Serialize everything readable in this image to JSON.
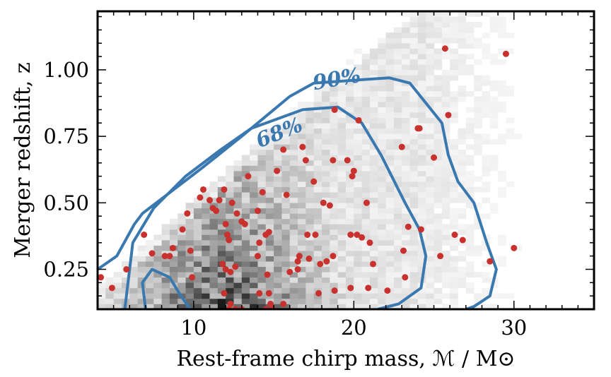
{
  "chart_data": {
    "type": "scatter",
    "title": "",
    "xlabel": "Rest-frame chirp mass, ℳ / M⊙",
    "ylabel": "Merger redshift, z",
    "xlim": [
      4,
      35
    ],
    "ylim": [
      0.1,
      1.22
    ],
    "x_ticks": [
      10,
      20,
      30
    ],
    "x_tick_labels": [
      "10",
      "20",
      "30"
    ],
    "y_ticks": [
      0.25,
      0.5,
      0.75,
      1.0
    ],
    "y_tick_labels": [
      "0.25",
      "0.50",
      "0.75",
      "1.00"
    ],
    "grid": false,
    "background_histogram": {
      "style": "grayscale 2D histogram of simulated mergers",
      "bin_width_mass": 0.5,
      "bin_width_z": 0.02
    },
    "contours": [
      {
        "label": "68%",
        "points": [
          [
            5.7,
            0.1
          ],
          [
            6.2,
            0.35
          ],
          [
            7.5,
            0.48
          ],
          [
            9.5,
            0.6
          ],
          [
            11.7,
            0.7
          ],
          [
            13.6,
            0.78
          ],
          [
            16.8,
            0.85
          ],
          [
            19,
            0.86
          ],
          [
            20.5,
            0.8
          ],
          [
            21.7,
            0.68
          ],
          [
            23.2,
            0.5
          ],
          [
            24.1,
            0.4
          ],
          [
            24.5,
            0.3
          ],
          [
            24.2,
            0.18
          ],
          [
            22.8,
            0.12
          ],
          [
            21.5,
            0.1
          ]
        ],
        "inner_points": [
          [
            7.0,
            0.1
          ],
          [
            6.8,
            0.2
          ],
          [
            7.4,
            0.25
          ],
          [
            8.5,
            0.22
          ],
          [
            9.2,
            0.15
          ],
          [
            9.8,
            0.1
          ]
        ]
      },
      {
        "label": "90%",
        "points": [
          [
            4,
            0.25
          ],
          [
            5.2,
            0.3
          ],
          [
            6.3,
            0.42
          ],
          [
            6.8,
            0.46
          ],
          [
            10.5,
            0.63
          ],
          [
            13.0,
            0.75
          ],
          [
            16.0,
            0.9
          ],
          [
            17.5,
            0.95
          ],
          [
            22.2,
            0.97
          ],
          [
            23.5,
            0.95
          ],
          [
            25.5,
            0.8
          ],
          [
            25.9,
            0.68
          ],
          [
            26.5,
            0.58
          ],
          [
            27.5,
            0.5
          ],
          [
            28.3,
            0.35
          ],
          [
            28.9,
            0.25
          ],
          [
            28.5,
            0.15
          ],
          [
            27.5,
            0.11
          ],
          [
            27.0,
            0.1
          ]
        ],
        "label_positions_data": [
          [
            15.5,
            0.74
          ],
          [
            19.0,
            0.94
          ]
        ]
      }
    ],
    "series": [
      {
        "marker": "circle",
        "color": "#c8312d",
        "points": [
          [
            4.2,
            0.22
          ],
          [
            4.9,
            0.18
          ],
          [
            5.8,
            0.25
          ],
          [
            6.9,
            0.38
          ],
          [
            7.4,
            0.31
          ],
          [
            8.2,
            0.3
          ],
          [
            8.5,
            0.3
          ],
          [
            8.7,
            0.33
          ],
          [
            9.3,
            0.4
          ],
          [
            9.6,
            0.46
          ],
          [
            9.8,
            0.32
          ],
          [
            9.9,
            0.22
          ],
          [
            10.4,
            0.52
          ],
          [
            10.6,
            0.55
          ],
          [
            11.0,
            0.51
          ],
          [
            11.2,
            0.48
          ],
          [
            11.4,
            0.47
          ],
          [
            11.6,
            0.51
          ],
          [
            11.9,
            0.55
          ],
          [
            12.0,
            0.42
          ],
          [
            12.1,
            0.38
          ],
          [
            12.2,
            0.36
          ],
          [
            12.3,
            0.24
          ],
          [
            12.4,
            0.5
          ],
          [
            12.7,
            0.46
          ],
          [
            13.0,
            0.43
          ],
          [
            13.2,
            0.42
          ],
          [
            11.8,
            0.27
          ],
          [
            12.0,
            0.25
          ],
          [
            11.9,
            0.16
          ],
          [
            12.6,
            0.26
          ],
          [
            12.2,
            0.1
          ],
          [
            12.3,
            0.12
          ],
          [
            12.6,
            0.1
          ],
          [
            13.0,
            0.1
          ],
          [
            13.4,
            0.6
          ],
          [
            14.0,
            0.3
          ],
          [
            14.1,
            0.35
          ],
          [
            14.3,
            0.54
          ],
          [
            14.0,
            0.47
          ],
          [
            14.5,
            0.38
          ],
          [
            14.7,
            0.39
          ],
          [
            14.1,
            0.16
          ],
          [
            14.6,
            0.23
          ],
          [
            14.7,
            0.16
          ],
          [
            14.8,
            0.12
          ],
          [
            14.5,
            0.1
          ],
          [
            14.9,
            0.1
          ],
          [
            15.2,
            0.62
          ],
          [
            15.6,
            0.7
          ],
          [
            15.8,
            0.53
          ],
          [
            15.6,
            0.12
          ],
          [
            16.0,
            0.24
          ],
          [
            16.6,
            0.3
          ],
          [
            16.5,
            0.28
          ],
          [
            16.5,
            0.25
          ],
          [
            16.8,
            0.71
          ],
          [
            17.0,
            0.66
          ],
          [
            17.1,
            0.38
          ],
          [
            17.2,
            0.29
          ],
          [
            17.5,
            0.58
          ],
          [
            17.6,
            0.38
          ],
          [
            17.9,
            0.27
          ],
          [
            17.8,
            0.16
          ],
          [
            18.1,
            0.5
          ],
          [
            18.3,
            0.28
          ],
          [
            18.5,
            0.49
          ],
          [
            18.7,
            0.3
          ],
          [
            18.7,
            0.66
          ],
          [
            18.8,
            0.85
          ],
          [
            18.8,
            0.17
          ],
          [
            19.6,
            0.66
          ],
          [
            19.8,
            0.18
          ],
          [
            19.8,
            0.38
          ],
          [
            19.9,
            0.6
          ],
          [
            20.0,
            0.62
          ],
          [
            20.2,
            0.38
          ],
          [
            20.3,
            0.81
          ],
          [
            20.5,
            0.37
          ],
          [
            20.8,
            0.5
          ],
          [
            20.9,
            0.18
          ],
          [
            21.0,
            0.35
          ],
          [
            21.2,
            0.27
          ],
          [
            22.1,
            0.17
          ],
          [
            23.0,
            0.71
          ],
          [
            23.1,
            0.32
          ],
          [
            23.2,
            0.22
          ],
          [
            23.4,
            0.41
          ],
          [
            24.0,
            0.78
          ],
          [
            24.1,
            0.78
          ],
          [
            24.2,
            0.4
          ],
          [
            25.0,
            0.67
          ],
          [
            25.4,
            0.3
          ],
          [
            25.7,
            1.08
          ],
          [
            25.9,
            0.83
          ],
          [
            26.3,
            0.38
          ],
          [
            26.8,
            0.36
          ],
          [
            28.5,
            0.28
          ],
          [
            29.5,
            1.06
          ],
          [
            30.0,
            0.33
          ]
        ]
      }
    ]
  }
}
